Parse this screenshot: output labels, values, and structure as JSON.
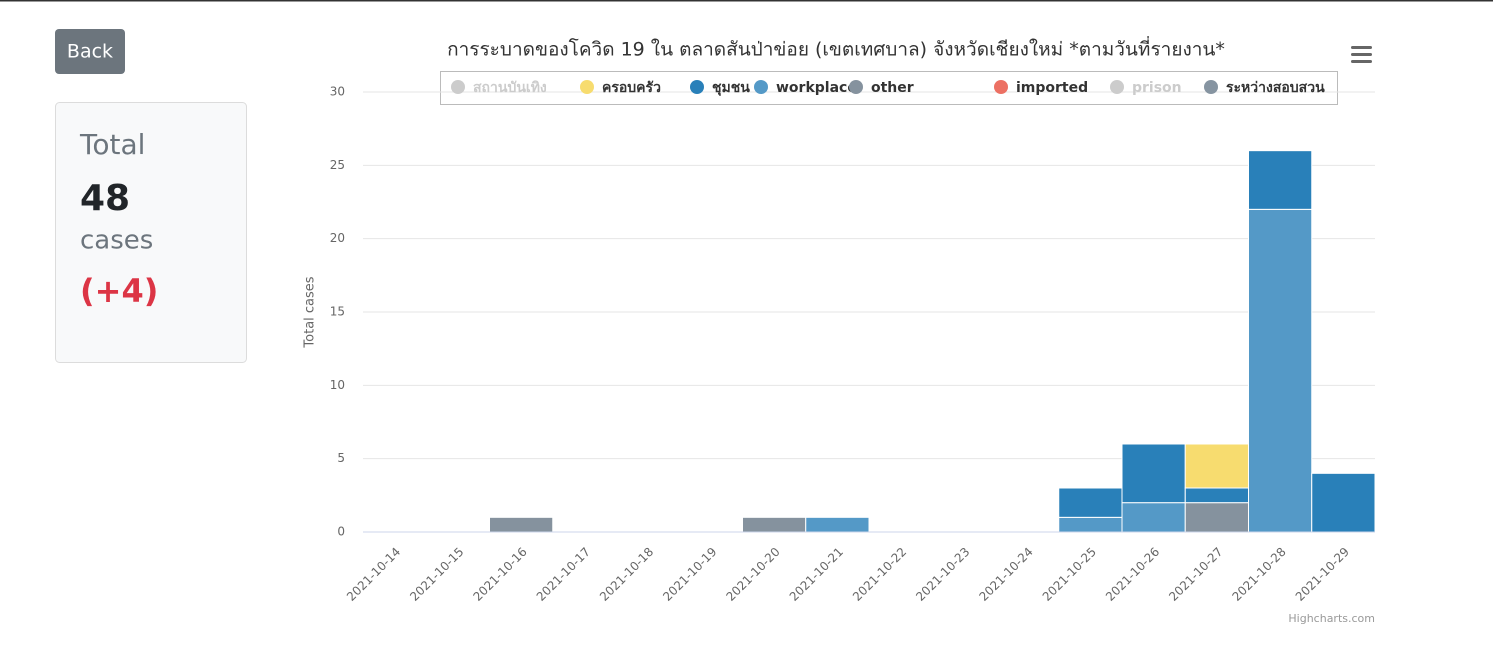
{
  "back": "Back",
  "summary": {
    "label": "Total",
    "value": 48,
    "unit": "cases",
    "change": "(+4)"
  },
  "credits": "Highcharts.com",
  "chart_data": {
    "type": "stacked_bar",
    "title": "การระบาดของโควิด 19 ใน ตลาดสันป่าข่อย (เขตเทศบาล) จังหวัดเชียงใหม่ *ตามวันที่รายงาน*",
    "y_label": "Total cases",
    "categories": [
      "2021-10-14",
      "2021-10-15",
      "2021-10-16",
      "2021-10-17",
      "2021-10-18",
      "2021-10-19",
      "2021-10-20",
      "2021-10-21",
      "2021-10-22",
      "2021-10-23",
      "2021-10-24",
      "2021-10-25",
      "2021-10-26",
      "2021-10-27",
      "2021-10-28",
      "2021-10-29"
    ],
    "series": [
      {
        "name": "สถานบันเทิง",
        "color": "#cccccc",
        "visible": false,
        "values": [
          null,
          null,
          null,
          null,
          null,
          null,
          null,
          null,
          null,
          null,
          null,
          null,
          null,
          null,
          null,
          null
        ]
      },
      {
        "name": "ครอบครัว",
        "color": "#f7dc6f",
        "visible": true,
        "values": [
          0,
          0,
          0,
          0,
          0,
          0,
          0,
          0,
          0,
          0,
          0,
          0,
          0,
          3,
          0,
          0
        ]
      },
      {
        "name": "ชุมชน",
        "color": "#2980b9",
        "visible": true,
        "values": [
          0,
          0,
          0,
          0,
          0,
          0,
          0,
          0,
          0,
          0,
          0,
          2,
          4,
          1,
          4,
          4
        ]
      },
      {
        "name": "workplace",
        "color": "#5499c7",
        "visible": true,
        "values": [
          0,
          0,
          0,
          0,
          0,
          0,
          0,
          1,
          0,
          0,
          0,
          1,
          2,
          0,
          22,
          0
        ]
      },
      {
        "name": "other",
        "color": "#85929e",
        "visible": true,
        "values": [
          0,
          0,
          1,
          0,
          0,
          0,
          1,
          0,
          0,
          0,
          0,
          0,
          0,
          2,
          0,
          0
        ]
      },
      {
        "name": "imported",
        "color": "#ec7063",
        "visible": true,
        "values": [
          0,
          0,
          0,
          0,
          0,
          0,
          0,
          0,
          0,
          0,
          0,
          0,
          0,
          0,
          0,
          0
        ]
      },
      {
        "name": "prison",
        "color": "#cccccc",
        "visible": false,
        "values": [
          null,
          null,
          null,
          null,
          null,
          null,
          null,
          null,
          null,
          null,
          null,
          null,
          null,
          null,
          null,
          null
        ]
      },
      {
        "name": "ระหว่างสอบสวน",
        "color": "#8694a1",
        "visible": true,
        "values": [
          0,
          0,
          0,
          0,
          0,
          0,
          0,
          0,
          0,
          0,
          0,
          0,
          0,
          0,
          0,
          0
        ]
      }
    ],
    "ylim": [
      0,
      30
    ],
    "yticks": [
      0,
      5,
      10,
      15,
      20,
      25,
      30
    ],
    "grid": true,
    "legend": "top"
  }
}
